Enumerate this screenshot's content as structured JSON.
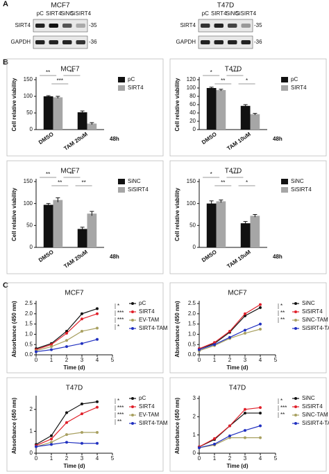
{
  "panel_labels": [
    "A",
    "B",
    "C"
  ],
  "blots": [
    {
      "title": "MCF7",
      "lanes": [
        "pC",
        "SIRT4",
        "SiNC",
        "SiSIRT4"
      ],
      "rows": [
        {
          "label": "SIRT4",
          "marker": "-35"
        },
        {
          "label": "GAPDH",
          "marker": "-36"
        }
      ]
    },
    {
      "title": "T47D",
      "lanes": [
        "pC",
        "SIRT4",
        "SiNC",
        "SiSIRT4"
      ],
      "rows": [
        {
          "label": "SIRT4",
          "marker": "-35"
        },
        {
          "label": "GAPDH",
          "marker": "-36"
        }
      ]
    }
  ],
  "chart_data": [
    {
      "type": "bar",
      "title": "MCF7",
      "ylabel": "Cell relative viability",
      "categories": [
        "DMSO",
        "TAM 20uM"
      ],
      "note": "48h",
      "series": [
        {
          "name": "pC",
          "color": "#111111",
          "values": [
            100,
            52
          ],
          "errors": [
            2,
            4
          ]
        },
        {
          "name": "SIRT4",
          "color": "#a6a6a6",
          "values": [
            97,
            18
          ],
          "errors": [
            3,
            3
          ]
        }
      ],
      "ylim": [
        0,
        150
      ],
      "yticks": [
        0,
        50,
        100,
        150
      ],
      "annotations": [
        "**",
        "***",
        "**"
      ]
    },
    {
      "type": "bar",
      "title": "T47D",
      "ylabel": "Cell relative viability",
      "categories": [
        "DMSO",
        "TAM 10uM"
      ],
      "note": "48h",
      "series": [
        {
          "name": "pC",
          "color": "#111111",
          "values": [
            100,
            57
          ],
          "errors": [
            2,
            3
          ]
        },
        {
          "name": "SIRT4",
          "color": "#a6a6a6",
          "values": [
            95,
            37
          ],
          "errors": [
            2,
            2
          ]
        }
      ],
      "ylim": [
        0,
        120
      ],
      "yticks": [
        0,
        20,
        40,
        60,
        80,
        100,
        120
      ],
      "annotations": [
        "*",
        "**",
        "***",
        "*"
      ]
    },
    {
      "type": "bar",
      "title": "MCF7",
      "ylabel": "Cell relative viability",
      "categories": [
        "DMSO",
        "TAM 20uM"
      ],
      "note": "48h",
      "series": [
        {
          "name": "SiNC",
          "color": "#111111",
          "values": [
            97,
            42
          ],
          "errors": [
            3,
            4
          ]
        },
        {
          "name": "SiSIRT4",
          "color": "#a6a6a6",
          "values": [
            108,
            77
          ],
          "errors": [
            5,
            5
          ]
        }
      ],
      "ylim": [
        0,
        150
      ],
      "yticks": [
        0,
        50,
        100,
        150
      ],
      "annotations": [
        "**",
        "**",
        "**",
        "**"
      ]
    },
    {
      "type": "bar",
      "title": "T47D",
      "ylabel": "Cell relative viability",
      "categories": [
        "DMSO",
        "TAM 10uM"
      ],
      "note": "48h",
      "series": [
        {
          "name": "SiNC",
          "color": "#111111",
          "values": [
            100,
            55
          ],
          "errors": [
            6,
            4
          ]
        },
        {
          "name": "SiSIRT4",
          "color": "#a6a6a6",
          "values": [
            105,
            72
          ],
          "errors": [
            3,
            3
          ]
        }
      ],
      "ylim": [
        0,
        150
      ],
      "yticks": [
        0,
        50,
        100,
        150
      ],
      "annotations": [
        "*",
        "**",
        "***",
        "*"
      ]
    },
    {
      "type": "line",
      "title": "MCF7",
      "xlabel": "Time (d)",
      "ylabel": "Absorbance (450 nm)",
      "x": [
        0,
        1,
        2,
        3,
        4
      ],
      "series": [
        {
          "name": "pC",
          "color": "#111111",
          "values": [
            0.3,
            0.55,
            1.15,
            2.0,
            2.25
          ]
        },
        {
          "name": "SIRT4",
          "color": "#e0202a",
          "values": [
            0.25,
            0.5,
            1.05,
            1.75,
            2.0
          ]
        },
        {
          "name": "EV-TAM",
          "color": "#a8a060",
          "values": [
            0.2,
            0.4,
            0.7,
            1.15,
            1.3
          ]
        },
        {
          "name": "SIRT4-TAM",
          "color": "#2030c0",
          "values": [
            0.15,
            0.25,
            0.4,
            0.55,
            0.75
          ]
        }
      ],
      "xlim": [
        0,
        5
      ],
      "xticks": [
        0,
        1,
        2,
        3,
        4,
        5
      ],
      "ylim": [
        0,
        2.5
      ],
      "yticks": [
        {
          "value": 0,
          "label": "0.0"
        },
        {
          "value": 0.5,
          "label": "0.5"
        },
        {
          "value": 1,
          "label": "1.0"
        },
        {
          "value": 1.5,
          "label": "1.5"
        },
        {
          "value": 2,
          "label": "2.0"
        },
        {
          "value": 2.5,
          "label": "2.5"
        }
      ],
      "annotations": [
        "*",
        "***",
        "***",
        "*"
      ]
    },
    {
      "type": "line",
      "title": "MCF7",
      "xlabel": "Time (d)",
      "ylabel": "Absorbance (450 nm)",
      "x": [
        0,
        1,
        2,
        3,
        4
      ],
      "series": [
        {
          "name": "SiNC",
          "color": "#111111",
          "values": [
            0.3,
            0.55,
            1.1,
            1.9,
            2.3
          ]
        },
        {
          "name": "SiSIRT4",
          "color": "#e0202a",
          "values": [
            0.3,
            0.6,
            1.15,
            2.0,
            2.45
          ]
        },
        {
          "name": "SiNC-TAM",
          "color": "#a8a060",
          "values": [
            0.2,
            0.45,
            0.8,
            1.05,
            1.25
          ]
        },
        {
          "name": "SiSIRT4-TAM",
          "color": "#2030c0",
          "values": [
            0.25,
            0.5,
            0.85,
            1.2,
            1.5
          ]
        }
      ],
      "xlim": [
        0,
        5
      ],
      "xticks": [
        0,
        1,
        2,
        3,
        4,
        5
      ],
      "ylim": [
        0,
        2.5
      ],
      "yticks": [
        {
          "value": 0,
          "label": "0.0"
        },
        {
          "value": 0.5,
          "label": "0.5"
        },
        {
          "value": 1,
          "label": "1.0"
        },
        {
          "value": 1.5,
          "label": "1.5"
        },
        {
          "value": 2,
          "label": "2.0"
        },
        {
          "value": 2.5,
          "label": "2.5"
        }
      ],
      "annotations": [
        "*",
        "**",
        "**"
      ]
    },
    {
      "type": "line",
      "title": "T47D",
      "xlabel": "Time (d)",
      "ylabel": "Absorbance (450 nm)",
      "x": [
        0,
        1,
        2,
        3,
        4
      ],
      "series": [
        {
          "name": "pC",
          "color": "#111111",
          "values": [
            0.4,
            0.8,
            1.85,
            2.25,
            2.35
          ]
        },
        {
          "name": "SIRT4",
          "color": "#e0202a",
          "values": [
            0.35,
            0.65,
            1.4,
            1.8,
            2.1
          ]
        },
        {
          "name": "EV-TAM",
          "color": "#a8a060",
          "values": [
            0.3,
            0.5,
            0.85,
            0.95,
            0.95
          ]
        },
        {
          "name": "SIRT4-TAM",
          "color": "#2030c0",
          "values": [
            0.3,
            0.4,
            0.5,
            0.45,
            0.45
          ]
        }
      ],
      "xlim": [
        0,
        5
      ],
      "xticks": [
        0,
        1,
        2,
        3,
        4,
        5
      ],
      "ylim": [
        0,
        2.5
      ],
      "yticks": [
        0,
        1,
        2
      ],
      "annotations": [
        "*",
        "***",
        "***",
        "**"
      ]
    },
    {
      "type": "line",
      "title": "T47D",
      "xlabel": "Time (d)",
      "ylabel": "Absorbance (450 nm)",
      "x": [
        0,
        1,
        2,
        3,
        4
      ],
      "series": [
        {
          "name": "SiNC",
          "color": "#111111",
          "values": [
            0.35,
            0.75,
            1.5,
            2.2,
            2.2
          ]
        },
        {
          "name": "SiSIRT4",
          "color": "#e0202a",
          "values": [
            0.35,
            0.8,
            1.5,
            2.4,
            2.5
          ]
        },
        {
          "name": "SiNC-TAM",
          "color": "#a8a060",
          "values": [
            0.3,
            0.45,
            0.85,
            0.85,
            0.85
          ]
        },
        {
          "name": "SiSIRT4-TAM",
          "color": "#2030c0",
          "values": [
            0.3,
            0.5,
            0.95,
            1.25,
            1.5
          ]
        }
      ],
      "xlim": [
        0,
        5
      ],
      "xticks": [
        0,
        1,
        2,
        3,
        4,
        5
      ],
      "ylim": [
        0,
        3
      ],
      "yticks": [
        0,
        1,
        2,
        3
      ],
      "annotations": [
        "*",
        "***",
        "**"
      ]
    }
  ]
}
